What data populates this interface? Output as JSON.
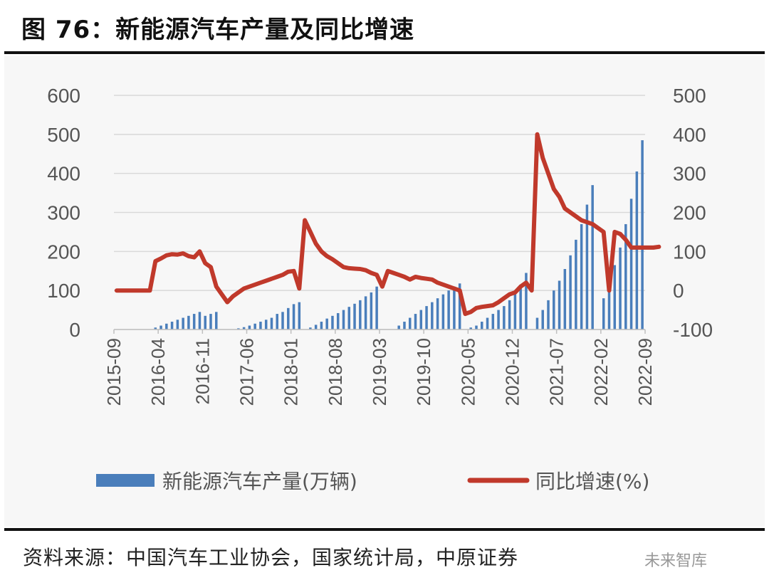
{
  "figure": {
    "title": "图 76：新能源汽车产量及同比增速",
    "source": "资料来源：中国汽车工业协会，国家统计局，中原证券",
    "watermark": "未来智库"
  },
  "colors": {
    "bar": "#4a7ebb",
    "line": "#c0392b",
    "grid": "#d9d9d9",
    "axis_text": "#555555"
  },
  "chart_data": {
    "type": "bar+line",
    "title": "图 76：新能源汽车产量及同比增速",
    "x_ticks": [
      "2015-09",
      "2016-04",
      "2016-11",
      "2017-06",
      "2018-01",
      "2018-08",
      "2019-03",
      "2019-10",
      "2020-05",
      "2020-12",
      "2021-07",
      "2022-02",
      "2022-09"
    ],
    "y_left": {
      "label": "新能源汽车产量(万辆)",
      "min": 0,
      "max": 600,
      "ticks": [
        0,
        100,
        200,
        300,
        400,
        500,
        600
      ]
    },
    "y_right": {
      "label": "同比增速(%)",
      "min": -100,
      "max": 500,
      "ticks": [
        -100,
        0,
        100,
        200,
        300,
        400,
        500
      ]
    },
    "legend": [
      "新能源汽车产量(万辆)",
      "同比增速(%)"
    ],
    "legend_position": "bottom",
    "series": [
      {
        "name": "新能源汽车产量(万辆)",
        "type": "bar",
        "axis": "left",
        "values": [
          0,
          0,
          0,
          0,
          0,
          0,
          0,
          5,
          10,
          15,
          20,
          25,
          30,
          35,
          40,
          45,
          35,
          40,
          45,
          0,
          0,
          0,
          3,
          6,
          10,
          15,
          20,
          25,
          30,
          40,
          45,
          55,
          65,
          70,
          0,
          5,
          12,
          20,
          28,
          35,
          42,
          50,
          58,
          66,
          75,
          85,
          95,
          110,
          0,
          0,
          0,
          10,
          20,
          30,
          40,
          50,
          60,
          70,
          80,
          90,
          100,
          110,
          118,
          0,
          5,
          10,
          20,
          30,
          40,
          50,
          60,
          75,
          90,
          115,
          145,
          0,
          30,
          50,
          75,
          100,
          125,
          155,
          190,
          230,
          270,
          320,
          370,
          0,
          80,
          135,
          165,
          210,
          270,
          335,
          405,
          485
        ]
      },
      {
        "name": "同比增速(%)",
        "type": "line",
        "axis": "right",
        "values": [
          0,
          0,
          0,
          0,
          0,
          0,
          0,
          75,
          82,
          90,
          93,
          92,
          95,
          88,
          85,
          100,
          70,
          60,
          10,
          -10,
          -30,
          -15,
          -5,
          5,
          10,
          15,
          20,
          25,
          30,
          35,
          40,
          48,
          50,
          5,
          180,
          150,
          120,
          100,
          88,
          80,
          70,
          60,
          57,
          56,
          55,
          52,
          45,
          40,
          10,
          50,
          45,
          40,
          35,
          28,
          35,
          32,
          30,
          28,
          20,
          15,
          10,
          5,
          0,
          -60,
          -55,
          -45,
          -42,
          -40,
          -38,
          -30,
          -20,
          -10,
          -5,
          10,
          20,
          0,
          400,
          340,
          300,
          260,
          240,
          210,
          200,
          190,
          180,
          175,
          170,
          160,
          150,
          0,
          150,
          145,
          130,
          110,
          110,
          110,
          110,
          110,
          112
        ]
      }
    ]
  }
}
